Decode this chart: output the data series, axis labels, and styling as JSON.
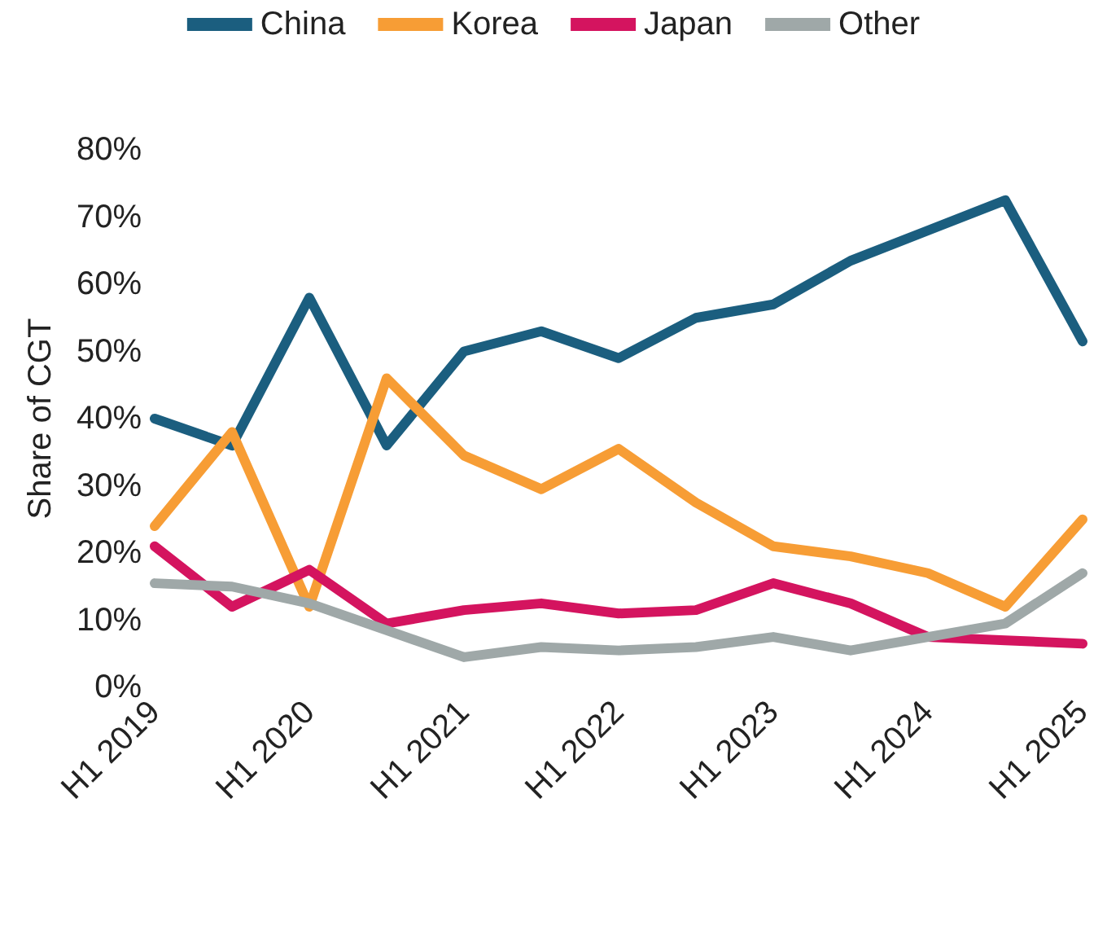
{
  "chart_data": {
    "type": "line",
    "ylabel": "Share of CGT",
    "categories": [
      "H1 2019",
      null,
      "H1 2020",
      null,
      "H1 2021",
      null,
      "H1 2022",
      null,
      "H1 2023",
      null,
      "H1 2024",
      null,
      "H1 2025"
    ],
    "series": [
      {
        "name": "China",
        "color": "#1b5e7f",
        "values": [
          40,
          36,
          58,
          36,
          50,
          53,
          49,
          55,
          57,
          63.5,
          68,
          72.5,
          51.5
        ]
      },
      {
        "name": "Korea",
        "color": "#f79d35",
        "values": [
          24,
          38,
          12,
          46,
          34.5,
          29.5,
          35.5,
          27.5,
          21,
          19.5,
          17,
          12,
          25
        ]
      },
      {
        "name": "Japan",
        "color": "#d4145f",
        "values": [
          21,
          12,
          17.5,
          9.5,
          11.5,
          12.5,
          11,
          11.5,
          15.5,
          12.5,
          7.5,
          7,
          6.5
        ]
      },
      {
        "name": "Other",
        "color": "#9fa8a8",
        "values": [
          15.5,
          15,
          12.5,
          8.5,
          4.5,
          6,
          5.5,
          6,
          7.5,
          5.5,
          7.5,
          9.5,
          17
        ]
      }
    ],
    "ylim": [
      0,
      80
    ],
    "yticks": [
      {
        "value": 0,
        "label": "0%"
      },
      {
        "value": 10,
        "label": "10%"
      },
      {
        "value": 20,
        "label": "20%"
      },
      {
        "value": 30,
        "label": "30%"
      },
      {
        "value": 40,
        "label": "40%"
      },
      {
        "value": 50,
        "label": "50%"
      },
      {
        "value": 60,
        "label": "60%"
      },
      {
        "value": 70,
        "label": "70%"
      },
      {
        "value": 80,
        "label": "80%"
      }
    ],
    "grid": false,
    "legend": "top",
    "marker": "none",
    "line_style": "solid"
  }
}
